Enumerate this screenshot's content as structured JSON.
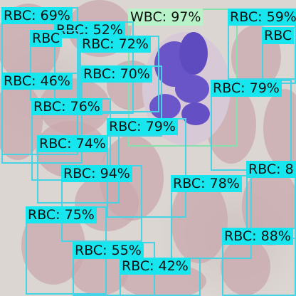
{
  "colors": {
    "rbc_box": "#46d3e3",
    "rbc_label_bg": "#18e6ef",
    "wbc_box": "#86e0b0",
    "wbc_label_bg": "#b8f2c8",
    "rbc_cell": "#c9a7ab",
    "wbc_nucleus": "#6a55c8"
  },
  "detections": [
    {
      "label": "RBC: 69%"
    },
    {
      "label": "WBC: 97%"
    },
    {
      "label": "RBC: 59%"
    },
    {
      "label": "RBC: 52%"
    },
    {
      "label": "RBC"
    },
    {
      "label": "RBC"
    },
    {
      "label": "RBC: 72%"
    },
    {
      "label": "RBC: 46%"
    },
    {
      "label": "RBC: 70%"
    },
    {
      "label": "RBC: 79%"
    },
    {
      "label": "RBC: 76%"
    },
    {
      "label": "RBC: 79%"
    },
    {
      "label": "RBC: 74%"
    },
    {
      "label": "RBC: 8"
    },
    {
      "label": "RBC: 94%"
    },
    {
      "label": "RBC: 78%"
    },
    {
      "label": "RBC: 75%"
    },
    {
      "label": "RBC: 88%"
    },
    {
      "label": "RBC: 55%"
    },
    {
      "label": "RBC: 42%"
    }
  ]
}
